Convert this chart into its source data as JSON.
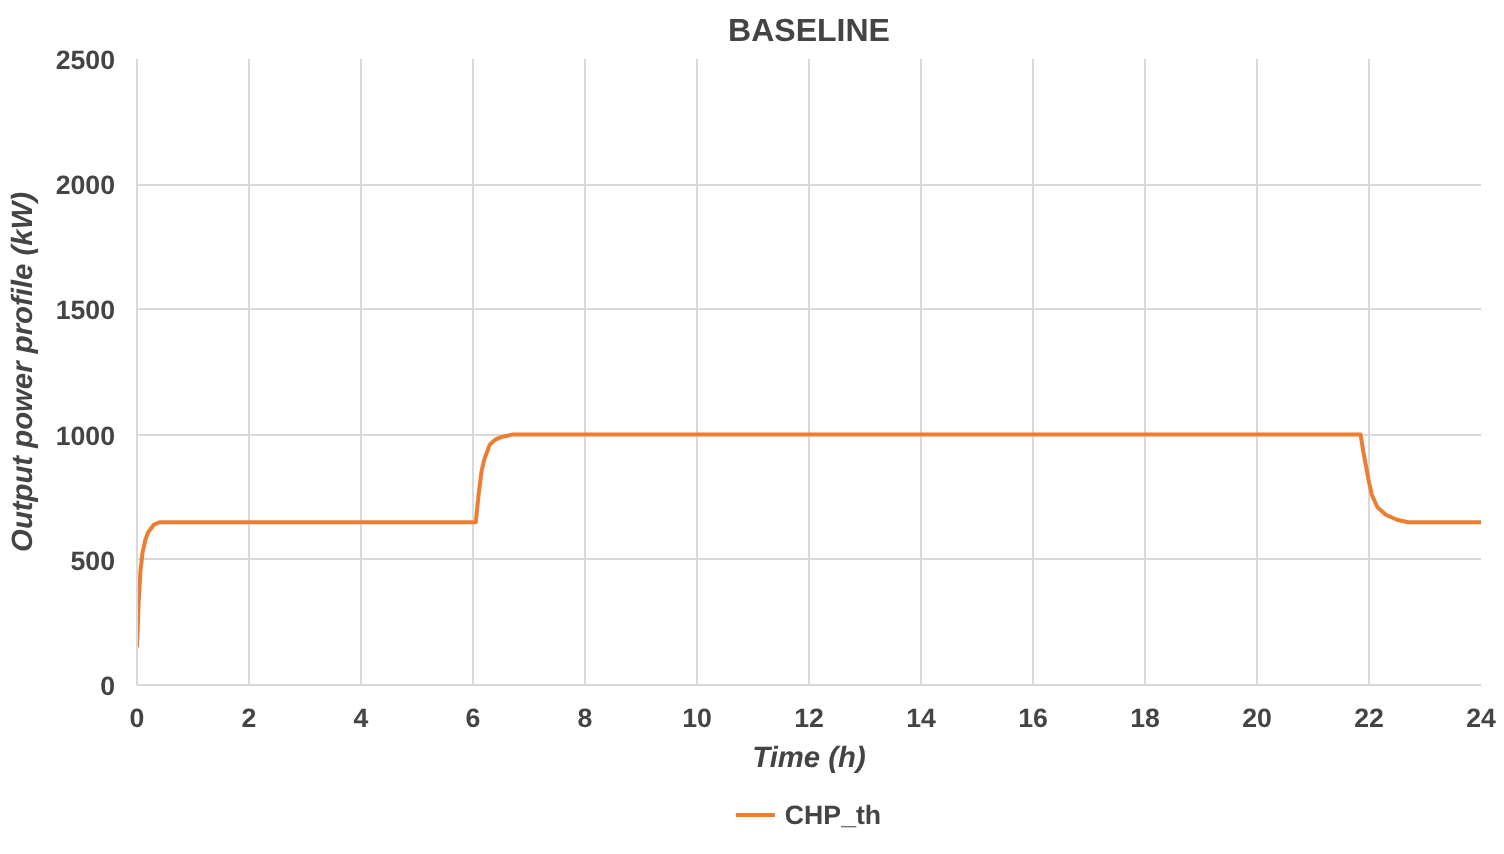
{
  "chart_data": {
    "type": "line",
    "title": "BASELINE",
    "xlabel": "Time (h)",
    "ylabel": "Output power profile (kW)",
    "xlim": [
      0,
      24
    ],
    "xticks": [
      0,
      2,
      4,
      6,
      8,
      10,
      12,
      14,
      16,
      18,
      20,
      22,
      24
    ],
    "ylim": [
      0,
      2500
    ],
    "yticks": [
      0,
      500,
      1000,
      1500,
      2000,
      2500
    ],
    "grid": true,
    "legend": "bottom",
    "line_style": "solid",
    "series": [
      {
        "name": "CHP_th",
        "color": "#ed7d31",
        "x": [
          0,
          0.03,
          0.06,
          0.1,
          0.15,
          0.2,
          0.3,
          0.4,
          0.5,
          0.7,
          6.05,
          6.1,
          6.15,
          6.2,
          6.3,
          6.4,
          6.5,
          6.7,
          21.85,
          21.9,
          21.95,
          22.0,
          22.05,
          22.15,
          22.3,
          22.5,
          22.7,
          24
        ],
        "values": [
          150,
          330,
          450,
          530,
          580,
          610,
          640,
          650,
          650,
          650,
          650,
          760,
          850,
          900,
          960,
          980,
          990,
          1000,
          1000,
          930,
          870,
          810,
          760,
          710,
          680,
          660,
          650,
          650
        ]
      }
    ]
  }
}
